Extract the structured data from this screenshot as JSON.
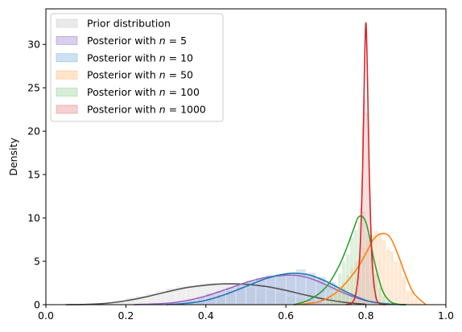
{
  "chart_data": {
    "type": "histogram+density",
    "xlabel": "",
    "ylabel": "Density",
    "xlim": [
      0.0,
      1.0
    ],
    "ylim": [
      0,
      34.1
    ],
    "xticks": [
      "0.0",
      "0.2",
      "0.4",
      "0.6",
      "0.8",
      "1.0"
    ],
    "yticks": [
      "0",
      "5",
      "10",
      "15",
      "20",
      "25",
      "30"
    ],
    "legend_placement": "upper-left",
    "series": [
      {
        "name": "Prior distribution",
        "color": "#555555",
        "hist_color": "#d9d9d9",
        "curve": {
          "x": [
            0.05,
            0.1,
            0.15,
            0.2,
            0.25,
            0.3,
            0.35,
            0.4,
            0.45,
            0.5,
            0.55,
            0.6,
            0.65,
            0.7,
            0.75,
            0.8
          ],
          "y": [
            0.0,
            0.03,
            0.15,
            0.45,
            0.9,
            1.45,
            1.95,
            2.25,
            2.4,
            2.35,
            2.1,
            1.65,
            1.1,
            0.6,
            0.25,
            0.05
          ]
        },
        "hist": {
          "bins": [
            0.1,
            0.125,
            0.15,
            0.175,
            0.2,
            0.225,
            0.25,
            0.275,
            0.3,
            0.325,
            0.35,
            0.375,
            0.4,
            0.425,
            0.45,
            0.475,
            0.5,
            0.525,
            0.55,
            0.575,
            0.6,
            0.625,
            0.65,
            0.675,
            0.7,
            0.725,
            0.75
          ],
          "heights": [
            0.1,
            0.2,
            0.3,
            0.5,
            0.8,
            1.0,
            1.3,
            1.6,
            1.9,
            2.1,
            2.2,
            2.4,
            2.5,
            2.5,
            2.4,
            2.3,
            2.0,
            1.8,
            1.6,
            1.3,
            1.0,
            0.8,
            0.5,
            0.3,
            0.2,
            0.1
          ]
        }
      },
      {
        "name": "Posterior with n = 5",
        "label_prefix": "Posterior with ",
        "label_n": "n",
        "label_suffix": " = 5",
        "color": "#9467bd",
        "hist_color": "#b9a6dc",
        "curve": {
          "x": [
            0.22,
            0.3,
            0.35,
            0.4,
            0.45,
            0.5,
            0.55,
            0.6,
            0.63,
            0.66,
            0.7,
            0.75,
            0.8,
            0.85,
            0.9
          ],
          "y": [
            0.0,
            0.15,
            0.45,
            1.0,
            1.75,
            2.55,
            3.15,
            3.4,
            3.35,
            3.05,
            2.3,
            1.25,
            0.45,
            0.1,
            0.0
          ]
        },
        "hist": {
          "bins": [
            0.3,
            0.325,
            0.35,
            0.375,
            0.4,
            0.425,
            0.45,
            0.475,
            0.5,
            0.525,
            0.55,
            0.575,
            0.6,
            0.625,
            0.65,
            0.675,
            0.7,
            0.725,
            0.75,
            0.775,
            0.8,
            0.825
          ],
          "heights": [
            0.2,
            0.4,
            0.6,
            0.9,
            1.3,
            1.6,
            2.0,
            2.4,
            2.8,
            3.0,
            3.2,
            3.4,
            3.5,
            3.4,
            3.2,
            2.9,
            2.4,
            1.8,
            1.3,
            0.8,
            0.4
          ]
        }
      },
      {
        "name": "Posterior with n = 10",
        "label_prefix": "Posterior with ",
        "label_n": "n",
        "label_suffix": " = 10",
        "color": "#1f77b4",
        "hist_color": "#a6c8e3",
        "curve": {
          "x": [
            0.3,
            0.35,
            0.4,
            0.45,
            0.5,
            0.55,
            0.6,
            0.63,
            0.66,
            0.7,
            0.75,
            0.8,
            0.85,
            0.9
          ],
          "y": [
            0.0,
            0.15,
            0.5,
            1.2,
            2.1,
            3.0,
            3.55,
            3.6,
            3.4,
            2.7,
            1.5,
            0.5,
            0.1,
            0.0
          ]
        },
        "hist": {
          "bins": [
            0.35,
            0.375,
            0.4,
            0.425,
            0.45,
            0.475,
            0.5,
            0.525,
            0.55,
            0.575,
            0.6,
            0.625,
            0.65,
            0.675,
            0.7,
            0.725,
            0.75,
            0.775,
            0.8,
            0.825,
            0.85
          ],
          "heights": [
            0.2,
            0.4,
            0.8,
            1.2,
            1.7,
            2.2,
            2.7,
            3.1,
            3.4,
            3.6,
            3.5,
            4.1,
            3.7,
            3.2,
            2.6,
            1.9,
            1.3,
            0.8,
            0.4,
            0.2
          ]
        }
      },
      {
        "name": "Posterior with n = 50",
        "label_prefix": "Posterior with ",
        "label_n": "n",
        "label_suffix": " = 50",
        "color": "#ff7f0e",
        "hist_color": "#ffcd9f",
        "curve": {
          "x": [
            0.62,
            0.68,
            0.72,
            0.75,
            0.78,
            0.8,
            0.82,
            0.84,
            0.86,
            0.88,
            0.9,
            0.92,
            0.95
          ],
          "y": [
            0.0,
            0.3,
            1.2,
            2.5,
            4.3,
            5.9,
            7.6,
            8.2,
            7.8,
            5.8,
            3.3,
            1.3,
            0.0
          ]
        },
        "hist": {
          "bins": [
            0.69,
            0.7,
            0.71,
            0.72,
            0.73,
            0.74,
            0.75,
            0.76,
            0.77,
            0.78,
            0.79,
            0.8,
            0.81,
            0.82,
            0.83,
            0.84,
            0.85,
            0.86,
            0.87,
            0.88,
            0.89,
            0.9,
            0.91,
            0.92,
            0.93,
            0.94
          ],
          "heights": [
            0.3,
            0.6,
            1.0,
            1.5,
            2.1,
            2.7,
            3.4,
            4.3,
            5.0,
            5.8,
            6.6,
            7.4,
            8.1,
            8.5,
            8.3,
            7.5,
            6.4,
            6.2,
            5.0,
            4.9,
            3.2,
            1.6,
            1.5,
            0.8,
            0.2
          ]
        }
      },
      {
        "name": "Posterior with n = 100",
        "label_prefix": "Posterior with ",
        "label_n": "n",
        "label_suffix": " = 100",
        "color": "#2ca02c",
        "hist_color": "#b4deb4",
        "curve": {
          "x": [
            0.62,
            0.66,
            0.7,
            0.73,
            0.75,
            0.77,
            0.78,
            0.79,
            0.8,
            0.81,
            0.82,
            0.84,
            0.86,
            0.88,
            0.9
          ],
          "y": [
            0.0,
            0.6,
            2.0,
            4.2,
            6.3,
            8.8,
            10.0,
            10.2,
            9.5,
            7.6,
            5.2,
            1.8,
            0.4,
            0.05,
            0.0
          ]
        },
        "hist": {
          "bins": [
            0.7,
            0.71,
            0.72,
            0.73,
            0.74,
            0.75,
            0.76,
            0.77,
            0.78,
            0.79,
            0.8,
            0.81,
            0.82,
            0.83,
            0.84,
            0.85,
            0.86,
            0.87
          ],
          "heights": [
            0.8,
            1.5,
            2.3,
            3.6,
            5.0,
            5.8,
            7.8,
            8.6,
            9.6,
            10.8,
            8.2,
            6.4,
            3.6,
            2.0,
            1.0,
            0.5,
            0.2
          ]
        }
      },
      {
        "name": "Posterior with n = 1000",
        "label_prefix": "Posterior with ",
        "label_n": "n",
        "label_suffix": " = 1000",
        "color": "#d62728",
        "hist_color": "#eea9a9",
        "curve": {
          "x": [
            0.75,
            0.765,
            0.775,
            0.783,
            0.788,
            0.792,
            0.796,
            0.8,
            0.804,
            0.808,
            0.812,
            0.817,
            0.825,
            0.835,
            0.85
          ],
          "y": [
            0.0,
            0.2,
            1.3,
            4.5,
            9.2,
            16.0,
            26.0,
            32.5,
            26.0,
            16.0,
            9.2,
            4.0,
            0.9,
            0.1,
            0.0
          ]
        },
        "hist": {
          "bins": [
            0.77,
            0.775,
            0.78,
            0.785,
            0.79,
            0.795,
            0.8,
            0.805,
            0.81,
            0.815,
            0.82,
            0.825
          ],
          "heights": [
            0.8,
            2.2,
            5.2,
            11.2,
            20.8,
            23.6,
            22.1,
            17.7,
            9.0,
            4.5,
            1.2
          ]
        }
      }
    ]
  }
}
